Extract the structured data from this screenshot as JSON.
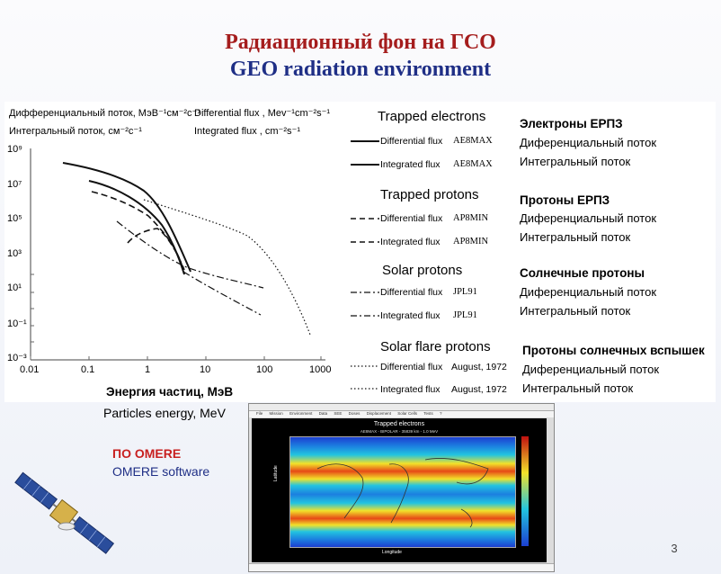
{
  "slide": {
    "title_ru": "Радиационный фон на ГСО",
    "title_en": "GEO radiation environment",
    "page_number": "3"
  },
  "plot": {
    "y_header_ru": "Дифференциальный поток, МэВ⁻¹см⁻²с⁻¹",
    "y_header_ru_integral": "Интегральный поток, см⁻²с⁻¹",
    "y_header_en": "Differential flux , Mev⁻¹cm⁻²s⁻¹",
    "y_header_en_integral": "Integrated flux ,   cm⁻²s⁻¹",
    "x_label_ru": "Энергия частиц, МэВ",
    "x_label_en": "Particles energy, MeV",
    "x_ticks": [
      "0.01",
      "0.1",
      "1",
      "10",
      "100",
      "1000"
    ],
    "y_ticks": [
      "10⁹",
      "10⁷",
      "10⁵",
      "10³",
      "10¹",
      "10⁻¹",
      "10⁻³"
    ]
  },
  "legend": [
    {
      "heading": "Trapped electrons",
      "ru_heading": "Электроны ЕРПЗ",
      "items": [
        {
          "label": "Differential flux",
          "source": "AE8MAX",
          "ru": "Диференциальный поток",
          "style": "solid"
        },
        {
          "label": "Integrated flux",
          "source": "AE8MAX",
          "ru": "Интегральный поток",
          "style": "solid"
        }
      ]
    },
    {
      "heading": "Trapped protons",
      "ru_heading": "Протоны ЕРПЗ",
      "items": [
        {
          "label": "Differential flux",
          "source": "AP8MIN",
          "ru": "Диференциальный поток",
          "style": "dash"
        },
        {
          "label": "Integrated flux",
          "source": "AP8MIN",
          "ru": "Интегральный поток",
          "style": "dash"
        }
      ]
    },
    {
      "heading": "Solar protons",
      "ru_heading": "Солнечные протоны",
      "items": [
        {
          "label": "Differential flux",
          "source": "JPL91",
          "ru": "Диференциальный поток",
          "style": "dashdot"
        },
        {
          "label": "Integrated flux",
          "source": "JPL91",
          "ru": "Интегральный поток",
          "style": "dashdot"
        }
      ]
    },
    {
      "heading": "Solar flare protons",
      "ru_heading": "Протоны солнечных вспышек",
      "items": [
        {
          "label": "Differential flux",
          "source": "August, 1972",
          "ru": "Диференциальный поток",
          "style": "dot"
        },
        {
          "label": "Integrated flux",
          "source": "August, 1972",
          "ru": "Интегральный поток",
          "style": "dot"
        }
      ]
    }
  ],
  "software": {
    "label_ru": "ПО OMERE",
    "label_en": "OMERE software",
    "plot_title": "Trapped electrons",
    "plot_subtitle": "AE8MAX - BIPOLAR - 35839 km - 1.0 MeV",
    "x_axis": "Longitude",
    "y_axis": "Latitude",
    "menu_items": [
      "File",
      "Mission",
      "Environment",
      "Data",
      "SEE",
      "Doses",
      "Displacement",
      "Solar Cells",
      "Tests",
      "?"
    ]
  }
}
